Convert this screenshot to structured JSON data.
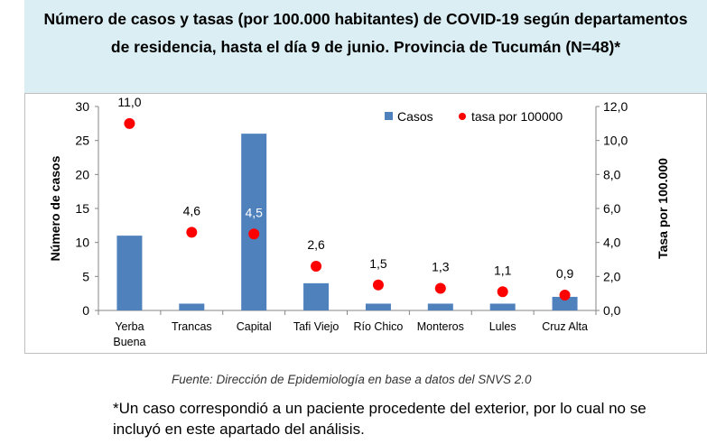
{
  "title": "Número de casos y tasas (por 100.000 habitantes) de COVID-19 según departamentos de residencia, hasta el día 9 de junio. Provincia de Tucumán (N=48)*",
  "source": "Fuente: Dirección de Epidemiología en base a datos del SNVS 2.0",
  "footnote": "*Un caso correspondió a un paciente procedente del exterior, por lo cual no se incluyó en este apartado del análisis.",
  "chart_data": {
    "type": "bar",
    "categories": [
      "Yerba Buena",
      "Trancas",
      "Capital",
      "Tafi Viejo",
      "Río Chico",
      "Monteros",
      "Lules",
      "Cruz Alta"
    ],
    "category_lines": [
      [
        "Yerba",
        "Buena"
      ],
      [
        "Trancas"
      ],
      [
        "Capital"
      ],
      [
        "Tafi Viejo"
      ],
      [
        "Río Chico"
      ],
      [
        "Monteros"
      ],
      [
        "Lules"
      ],
      [
        "Cruz Alta"
      ]
    ],
    "series": [
      {
        "name": "Casos",
        "type": "bar",
        "axis": "left",
        "color": "#4f81bd",
        "values": [
          11,
          1,
          26,
          4,
          1,
          1,
          1,
          2
        ]
      },
      {
        "name": "tasa por 100000",
        "type": "scatter",
        "axis": "right",
        "color": "#ff0000",
        "values": [
          11.0,
          4.6,
          4.5,
          2.6,
          1.5,
          1.3,
          1.1,
          0.9
        ],
        "labels": [
          "11,0",
          "4,6",
          "4,5",
          "2,6",
          "1,5",
          "1,3",
          "1,1",
          "0,9"
        ]
      }
    ],
    "ylabel": "Número de casos",
    "y2label": "Tasa por 100.000",
    "ylim": [
      0,
      30
    ],
    "y2lim": [
      0,
      12
    ],
    "yticks": [
      0,
      5,
      10,
      15,
      20,
      25,
      30
    ],
    "y2ticks": [
      "0,0",
      "2,0",
      "4,0",
      "6,0",
      "8,0",
      "10,0",
      "12,0"
    ],
    "grid": false,
    "legend_position": "top-right"
  }
}
